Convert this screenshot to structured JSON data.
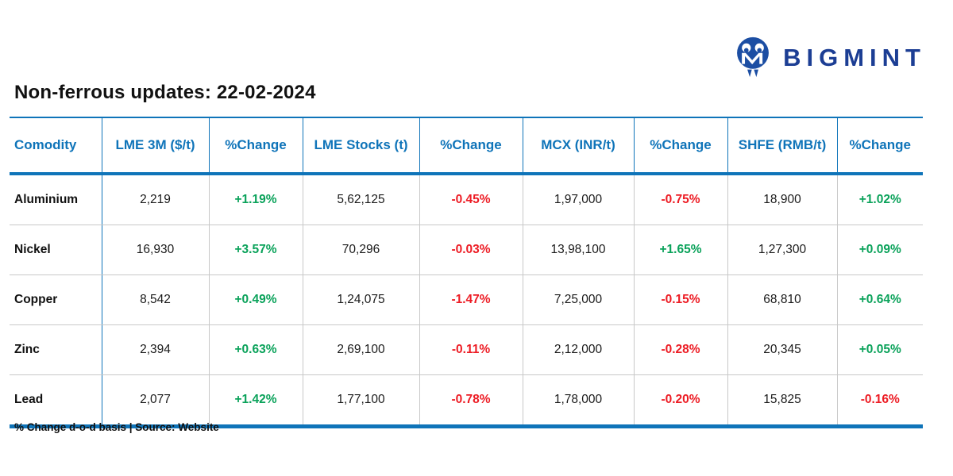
{
  "brand": {
    "name": "BIGMINT",
    "icon": "bigmint-owl-logo-icon"
  },
  "page": {
    "title": "Non-ferrous updates: 22-02-2024",
    "footer_note": "% Change d-o-d basis | Source: Website"
  },
  "colors": {
    "header_blue": "#0f74b9",
    "positive_green": "#0aa25a",
    "negative_red": "#ed1c24",
    "brand_navy": "#1c3e94",
    "grid_gray": "#c8c8c8"
  },
  "table": {
    "columns": [
      "Comodity",
      "LME 3M ($/t)",
      "%Change",
      "LME Stocks (t)",
      "%Change",
      "MCX (INR/t)",
      "%Change",
      "SHFE (RMB/t)",
      "%Change"
    ],
    "rows": [
      [
        "Aluminium",
        "2,219",
        "+1.19%",
        "5,62,125",
        "-0.45%",
        "1,97,000",
        "-0.75%",
        "18,900",
        "+1.02%"
      ],
      [
        "Nickel",
        "16,930",
        "+3.57%",
        "70,296",
        "-0.03%",
        "13,98,100",
        "+1.65%",
        "1,27,300",
        "+0.09%"
      ],
      [
        "Copper",
        "8,542",
        "+0.49%",
        "1,24,075",
        "-1.47%",
        "7,25,000",
        "-0.15%",
        "68,810",
        "+0.64%"
      ],
      [
        "Zinc",
        "2,394",
        "+0.63%",
        "2,69,100",
        "-0.11%",
        "2,12,000",
        "-0.28%",
        "20,345",
        "+0.05%"
      ],
      [
        "Lead",
        "2,077",
        "+1.42%",
        "1,77,100",
        "-0.78%",
        "1,78,000",
        "-0.20%",
        "15,825",
        "-0.16%"
      ]
    ]
  },
  "chart_data": {
    "type": "table",
    "title": "Non-ferrous updates: 22-02-2024",
    "columns": [
      "Comodity",
      "LME 3M ($/t)",
      "%Change",
      "LME Stocks (t)",
      "%Change",
      "MCX (INR/t)",
      "%Change",
      "SHFE (RMB/t)",
      "%Change"
    ],
    "rows": [
      {
        "commodity": "Aluminium",
        "lme_3m_usd_t": 2219,
        "lme_3m_change_pct": 1.19,
        "lme_stocks_t": 562125,
        "lme_stocks_change_pct": -0.45,
        "mcx_inr_t": 197000,
        "mcx_change_pct": -0.75,
        "shfe_rmb_t": 18900,
        "shfe_change_pct": 1.02
      },
      {
        "commodity": "Nickel",
        "lme_3m_usd_t": 16930,
        "lme_3m_change_pct": 3.57,
        "lme_stocks_t": 70296,
        "lme_stocks_change_pct": -0.03,
        "mcx_inr_t": 1398100,
        "mcx_change_pct": 1.65,
        "shfe_rmb_t": 127300,
        "shfe_change_pct": 0.09
      },
      {
        "commodity": "Copper",
        "lme_3m_usd_t": 8542,
        "lme_3m_change_pct": 0.49,
        "lme_stocks_t": 124075,
        "lme_stocks_change_pct": -1.47,
        "mcx_inr_t": 725000,
        "mcx_change_pct": -0.15,
        "shfe_rmb_t": 68810,
        "shfe_change_pct": 0.64
      },
      {
        "commodity": "Zinc",
        "lme_3m_usd_t": 2394,
        "lme_3m_change_pct": 0.63,
        "lme_stocks_t": 269100,
        "lme_stocks_change_pct": -0.11,
        "mcx_inr_t": 212000,
        "mcx_change_pct": -0.28,
        "shfe_rmb_t": 20345,
        "shfe_change_pct": 0.05
      },
      {
        "commodity": "Lead",
        "lme_3m_usd_t": 2077,
        "lme_3m_change_pct": 1.42,
        "lme_stocks_t": 177100,
        "lme_stocks_change_pct": -0.78,
        "mcx_inr_t": 178000,
        "mcx_change_pct": -0.2,
        "shfe_rmb_t": 15825,
        "shfe_change_pct": -0.16
      }
    ],
    "note": "% Change d-o-d basis | Source: Website"
  }
}
